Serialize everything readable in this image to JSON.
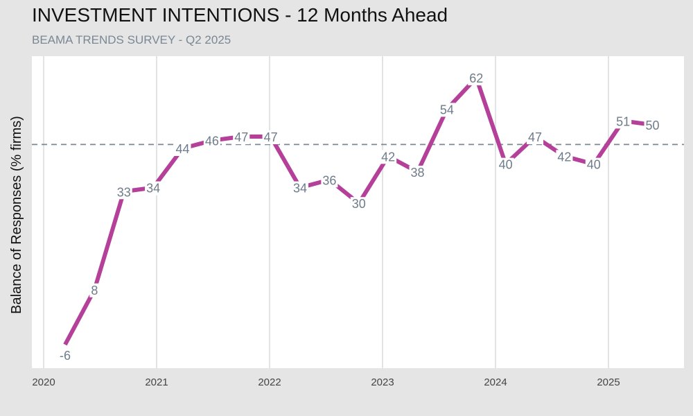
{
  "chart_data": {
    "type": "line",
    "title": "INVESTMENT INTENTIONS - 12 Months Ahead",
    "subtitle": "BEAMA TRENDS SURVEY - Q2 2025",
    "xlabel": "",
    "ylabel": "Balance of Responses (% firms)",
    "x_ticks": [
      "2020",
      "2021",
      "2022",
      "2023",
      "2024",
      "2025"
    ],
    "x_tick_values": [
      2020,
      2021,
      2022,
      2023,
      2024,
      2025
    ],
    "x_start": 2020.19,
    "x_step": 0.26,
    "values": [
      -6,
      8,
      33,
      34,
      44,
      46,
      47,
      47,
      34,
      36,
      30,
      42,
      38,
      54,
      62,
      40,
      47,
      42,
      40,
      51,
      50
    ],
    "reference_line": 45,
    "ylim": [
      -10,
      68
    ],
    "xlim": [
      2019.9,
      2025.68
    ],
    "line_color": "#b5409a",
    "label_color": "#6e7b8a",
    "reference_color": "#7a8794",
    "grid": "vertical"
  }
}
